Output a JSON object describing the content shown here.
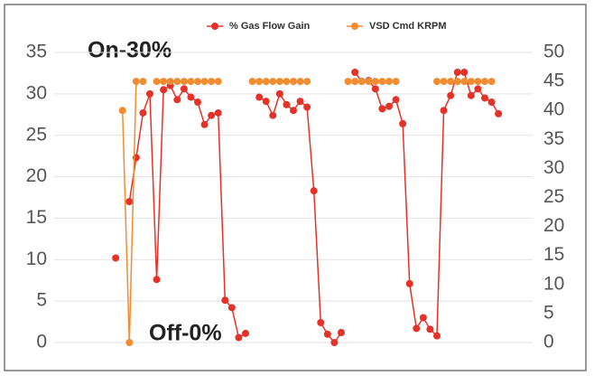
{
  "chart_data": {
    "type": "line",
    "x": [
      0,
      1,
      2,
      3,
      4,
      5,
      6,
      7,
      8,
      9,
      10,
      11,
      12,
      13,
      14,
      15,
      16,
      17,
      18,
      19,
      20,
      21,
      22,
      23,
      24,
      25,
      26,
      27,
      28,
      29,
      30,
      31,
      32,
      33,
      34,
      35,
      36,
      37,
      38,
      39,
      40,
      41,
      42,
      43,
      44,
      45,
      46,
      47,
      48,
      49,
      50,
      51,
      52,
      53,
      54,
      55,
      56
    ],
    "xlim": [
      -9,
      61
    ],
    "series": [
      {
        "name": "% Gas Flow Gain",
        "color": "#e53228",
        "values": [
          10.2,
          null,
          17,
          22.3,
          27.7,
          30,
          7.6,
          30.5,
          31,
          29.3,
          30.6,
          29.6,
          29,
          26.3,
          27.4,
          27.7,
          5.1,
          4.2,
          0.6,
          1.1,
          null,
          29.6,
          29.1,
          27.4,
          30,
          28.7,
          28,
          29.1,
          28.4,
          18.3,
          2.4,
          1,
          0,
          1.2,
          null,
          32.6,
          31.5,
          31.6,
          30.6,
          28.2,
          28.5,
          29.3,
          26.4,
          7.1,
          1.7,
          3,
          1.6,
          0.8,
          28,
          29.8,
          32.6,
          32.6,
          29.8,
          30.6,
          29.5,
          29,
          27.6
        ]
      },
      {
        "name": "VSD Cmd KRPM",
        "color": "#f28c30",
        "axis": "y2",
        "values": [
          null,
          40,
          0,
          45,
          45,
          null,
          45,
          45,
          45,
          45,
          45,
          45,
          45,
          45,
          45,
          45,
          null,
          null,
          null,
          null,
          45,
          45,
          45,
          45,
          45,
          45,
          45,
          45,
          45,
          null,
          null,
          null,
          null,
          null,
          45,
          45,
          45,
          45,
          45,
          45,
          45,
          45,
          null,
          null,
          null,
          null,
          null,
          45,
          45,
          45,
          45,
          45,
          45,
          45,
          45,
          45,
          null
        ]
      }
    ],
    "ylim": [
      0,
      35
    ],
    "yticks": [
      0,
      5,
      10,
      15,
      20,
      25,
      30,
      35
    ],
    "y2lim": [
      0,
      50
    ],
    "y2ticks": [
      0,
      5,
      10,
      15,
      20,
      25,
      30,
      35,
      40,
      45,
      50
    ],
    "grid": true,
    "legend": "top",
    "annotations": [
      "On-30%",
      "Off-0%"
    ]
  }
}
